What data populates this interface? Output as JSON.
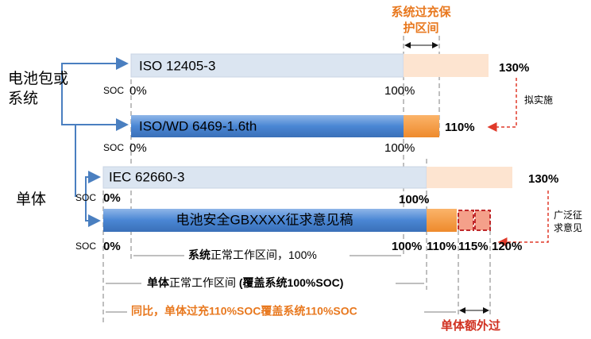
{
  "header": {
    "overcharge_zone": [
      "系统过充保",
      "护区间"
    ]
  },
  "groups": {
    "pack": [
      "电池包或",
      "系统"
    ],
    "cell": "单体"
  },
  "bars": [
    {
      "label": "ISO 12405-3",
      "max": "130%",
      "soc": "SOC",
      "start": "0%",
      "end": "100%"
    },
    {
      "label": "ISO/WD 6469-1.6th",
      "max": "110%",
      "soc": "SOC",
      "start": "0%",
      "end": "100%"
    },
    {
      "label": "IEC 62660-3",
      "max": "130%",
      "soc": "SOC",
      "start": "0%",
      "end": "100%"
    },
    {
      "label": "电池安全GBXXXX征求意见稿",
      "soc": "SOC",
      "start": "0%",
      "end": "100%",
      "marks": [
        "110%",
        "115%",
        "120%"
      ]
    }
  ],
  "notes": {
    "planned": "拟实施",
    "consultation": [
      "广泛征",
      "求意见"
    ]
  },
  "ranges": {
    "system": [
      "系统",
      "正常工作区间，100%"
    ],
    "cell": [
      "单体",
      "正常工作区间 ",
      "(覆盖系统100%SOC)"
    ],
    "compare": "同比，单体过充110%SOC覆盖系统110%SOC",
    "extra": "单体额外过"
  }
}
